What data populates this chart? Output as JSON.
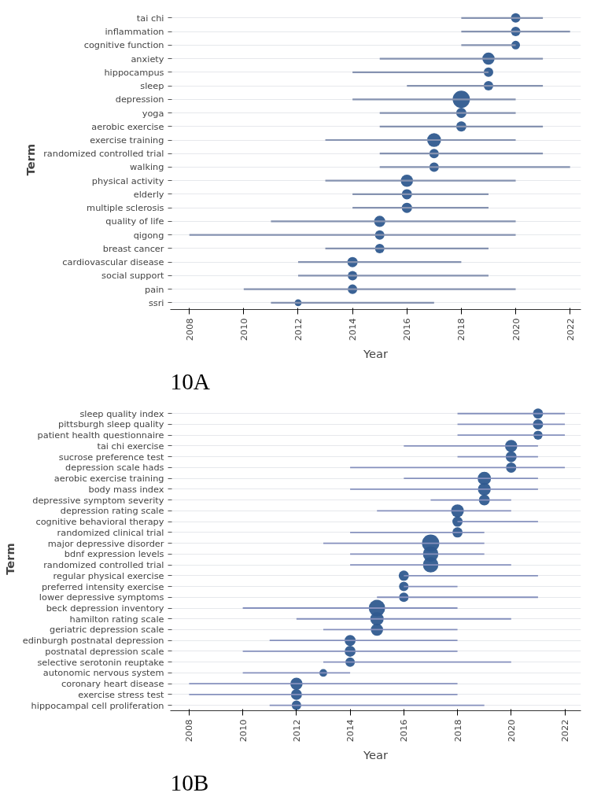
{
  "chart_data": [
    {
      "type": "bar",
      "orientation": "horizontal",
      "xlabel": "Year",
      "ylabel": "Term",
      "annotations": [
        "10A"
      ],
      "xlim": [
        2007.3,
        2022.4
      ],
      "xticks": [
        2008,
        2010,
        2012,
        2014,
        2016,
        2018,
        2020,
        2022
      ],
      "grid": "y",
      "categories": [
        "tai chi",
        "inflammation",
        "cognitive function",
        "anxiety",
        "hippocampus",
        "sleep",
        "depression",
        "yoga",
        "aerobic exercise",
        "exercise training",
        "randomized controlled trial",
        "walking",
        "physical activity",
        "elderly",
        "multiple sclerosis",
        "quality of life",
        "qigong",
        "breast cancer",
        "cardiovascular disease",
        "social support",
        "pain",
        "ssri"
      ],
      "series": [
        {
          "type": "bar",
          "color": "#8592b0",
          "base": [
            2018,
            2018,
            2018,
            2015,
            2014,
            2016,
            2014,
            2015,
            2015,
            2013,
            2015,
            2015,
            2013,
            2014,
            2014,
            2011,
            2008,
            2013,
            2012,
            2012,
            2010,
            2011
          ],
          "values": [
            3,
            4,
            2,
            6,
            5,
            5,
            6,
            5,
            6,
            7,
            6,
            7,
            7,
            5,
            5,
            9,
            12,
            6,
            6,
            7,
            10,
            6
          ]
        },
        {
          "type": "bubble",
          "color": "#2f5a8f",
          "values": [
            2020,
            2020,
            2020,
            2019,
            2019,
            2019,
            2018,
            2018,
            2018,
            2017,
            2017,
            2017,
            2016,
            2016,
            2016,
            2015,
            2015,
            2015,
            2014,
            2014,
            2014,
            2012
          ],
          "sizes": [
            0.3,
            0.3,
            0.25,
            0.5,
            0.3,
            0.3,
            1,
            0.35,
            0.35,
            0.64,
            0.3,
            0.3,
            0.5,
            0.35,
            0.35,
            0.42,
            0.3,
            0.3,
            0.35,
            0.3,
            0.3,
            0.16
          ]
        }
      ]
    },
    {
      "type": "bar",
      "orientation": "horizontal",
      "xlabel": "Year",
      "ylabel": "Term",
      "annotations": [
        "10B"
      ],
      "xlim": [
        2007.3,
        2022.6
      ],
      "xticks": [
        2008,
        2010,
        2012,
        2014,
        2016,
        2018,
        2020,
        2022
      ],
      "grid": "y",
      "categories": [
        "sleep quality index",
        "pittsburgh sleep quality",
        "patient health questionnaire",
        "tai chi exercise",
        "sucrose preference test",
        "depression scale hads",
        "aerobic exercise training",
        "body mass index",
        "depressive symptom severity",
        "depression rating scale",
        "cognitive behavioral therapy",
        "randomized clinical trial",
        "major depressive disorder",
        "bdnf expression levels",
        "randomized controlled trial",
        "regular physical exercise",
        "preferred intensity exercise",
        "lower depressive symptoms",
        "beck depression inventory",
        "hamilton rating scale",
        "geriatric depression scale",
        "edinburgh postnatal depression",
        "postnatal depression scale",
        "selective serotonin reuptake",
        "autonomic nervous system",
        "coronary heart disease",
        "exercise stress test",
        "hippocampal cell proliferation"
      ],
      "series": [
        {
          "type": "bar",
          "color": "#8590bd",
          "base": [
            2018,
            2018,
            2018,
            2016,
            2018,
            2014,
            2016,
            2014,
            2017,
            2015,
            2018,
            2014,
            2013,
            2014,
            2014,
            2016,
            2016,
            2015,
            2010,
            2012,
            2013,
            2011,
            2010,
            2013,
            2010,
            2008,
            2008,
            2011
          ],
          "values": [
            4,
            4,
            4,
            5,
            3,
            8,
            5,
            7,
            3,
            5,
            3,
            5,
            6,
            5,
            6,
            5,
            2,
            6,
            8,
            8,
            5,
            7,
            8,
            7,
            4,
            10,
            10,
            8
          ]
        },
        {
          "type": "bubble",
          "color": "#2f5a8f",
          "values": [
            2021,
            2021,
            2021,
            2020,
            2020,
            2020,
            2019,
            2019,
            2019,
            2018,
            2018,
            2018,
            2017,
            2017,
            2017,
            2016,
            2016,
            2016,
            2015,
            2015,
            2015,
            2014,
            2014,
            2014,
            2013,
            2012,
            2012,
            2012
          ],
          "sizes": [
            0.35,
            0.35,
            0.28,
            0.5,
            0.4,
            0.35,
            0.6,
            0.55,
            0.4,
            0.55,
            0.35,
            0.35,
            1,
            0.8,
            0.8,
            0.35,
            0.3,
            0.3,
            0.9,
            0.6,
            0.5,
            0.4,
            0.4,
            0.3,
            0.2,
            0.5,
            0.4,
            0.3
          ]
        }
      ]
    }
  ]
}
